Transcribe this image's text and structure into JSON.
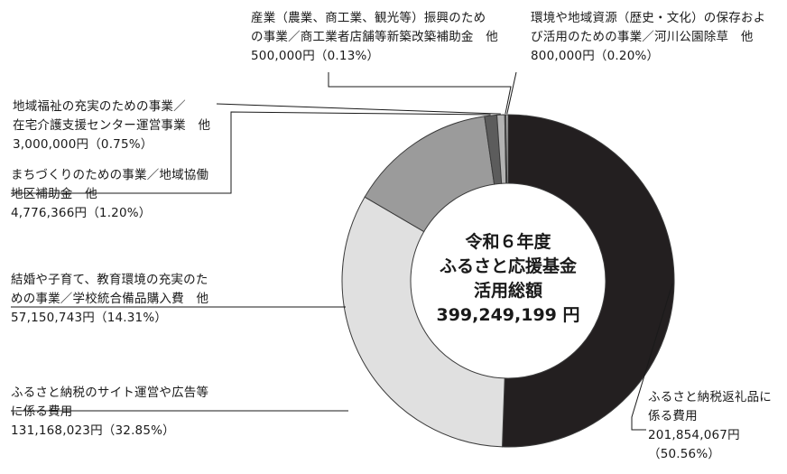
{
  "chart_data": {
    "type": "pie",
    "title_lines": [
      "令和６年度",
      "ふるさと応援基金",
      "活用総額",
      "399,249,199 円"
    ],
    "series": [
      {
        "lines": [
          "ふるさと納税返礼品に",
          "係る費用",
          "201,854,067円",
          "（50.56%）"
        ],
        "value": 201854067,
        "percent": 50.56,
        "color": "#231f20"
      },
      {
        "lines": [
          "ふるさと納税のサイト運営や広告等",
          "に係る費用",
          "131,168,023円（32.85%）"
        ],
        "value": 131168023,
        "percent": 32.85,
        "color": "#e0e0e0"
      },
      {
        "lines": [
          "結婚や子育て、教育環境の充実のた",
          "めの事業／学校統合備品購入費　他",
          "57,150,743円（14.31%）"
        ],
        "value": 57150743,
        "percent": 14.31,
        "color": "#9b9b9b"
      },
      {
        "lines": [
          "まちづくりのための事業／地域協働",
          "地区補助金　他",
          "4,776,366円（1.20%）"
        ],
        "value": 4776366,
        "percent": 1.2,
        "color": "#5c5c5c"
      },
      {
        "lines": [
          "地域福祉の充実のための事業／",
          "在宅介護支援センター運営事業　他",
          "3,000,000円（0.75%）"
        ],
        "value": 3000000,
        "percent": 0.75,
        "color": "#b3b3b3"
      },
      {
        "lines": [
          "産業（農業、商工業、観光等）振興のため",
          "の事業／商工業者店舗等新築改築補助金　他",
          "500,000円（0.13%）"
        ],
        "value": 500000,
        "percent": 0.13,
        "color": "#808080"
      },
      {
        "lines": [
          "環境や地域資源（歴史・文化）の保存およ",
          "び活用のための事業／河川公園除草　他",
          "800,000円（0.20%）"
        ],
        "value": 800000,
        "percent": 0.2,
        "color": "#d0d0d0"
      }
    ]
  }
}
